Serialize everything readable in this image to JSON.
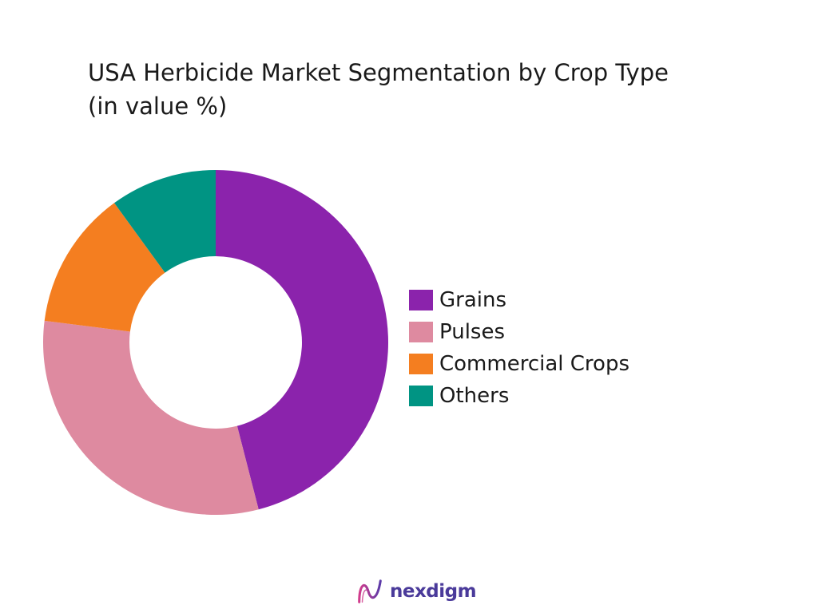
{
  "chart_data": {
    "type": "pie",
    "title": [
      "USA Herbicide Market Segmentation by Crop Type",
      "(in value %)"
    ],
    "categories": [
      "Grains",
      "Pulses",
      "Commercial Crops",
      "Others"
    ],
    "values": [
      46,
      31,
      13,
      10
    ],
    "colors": [
      "#8B23AC",
      "#DE8AA0",
      "#F47E20",
      "#009483"
    ],
    "start_angle_deg": 0,
    "direction": "clockwise",
    "hole": true,
    "legend_position": "right"
  },
  "brand": {
    "name": "nexdigm",
    "logo_icon": "nexdigm-wave-logo",
    "color": "#4A3A9A"
  }
}
